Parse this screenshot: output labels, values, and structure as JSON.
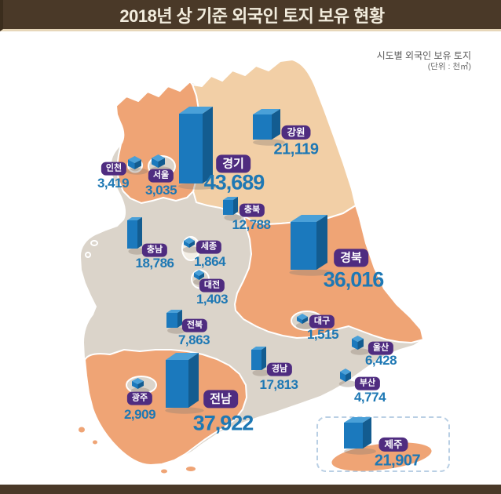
{
  "header": {
    "title": "2018년 상 기준 외국인 토지 보유 현황"
  },
  "subtitle": {
    "line1": "시도별 외국인 보유 토지",
    "line2": "(단위 : 천㎡)"
  },
  "chart_data": {
    "type": "bar",
    "variant": "3d-bar-markers-on-korea-map",
    "title": "2018년 상 기준 외국인 토지 보유 현황",
    "subtitle": "시도별 외국인 보유 토지",
    "unit": "천㎡",
    "categories": [
      "경기",
      "강원",
      "인천",
      "서울",
      "충북",
      "충남",
      "세종",
      "대전",
      "경북",
      "전북",
      "대구",
      "울산",
      "부산",
      "경남",
      "광주",
      "전남",
      "제주"
    ],
    "values": [
      43689,
      21119,
      3419,
      3035,
      12788,
      18786,
      1864,
      1403,
      36016,
      7863,
      1515,
      6428,
      4774,
      17813,
      2909,
      37922,
      21907
    ],
    "regions": [
      {
        "key": "gyeonggi",
        "name": "경기",
        "value": 43689,
        "label": "43,689",
        "emphasis": "large"
      },
      {
        "key": "gangwon",
        "name": "강원",
        "value": 21119,
        "label": "21,119",
        "emphasis": "medium"
      },
      {
        "key": "incheon",
        "name": "인천",
        "value": 3419,
        "label": "3,419",
        "emphasis": "small"
      },
      {
        "key": "seoul",
        "name": "서울",
        "value": 3035,
        "label": "3,035",
        "emphasis": "small"
      },
      {
        "key": "chungbuk",
        "name": "충북",
        "value": 12788,
        "label": "12,788",
        "emphasis": "small"
      },
      {
        "key": "chungnam",
        "name": "충남",
        "value": 18786,
        "label": "18,786",
        "emphasis": "small"
      },
      {
        "key": "sejong",
        "name": "세종",
        "value": 1864,
        "label": "1,864",
        "emphasis": "small"
      },
      {
        "key": "daejeon",
        "name": "대전",
        "value": 1403,
        "label": "1,403",
        "emphasis": "small"
      },
      {
        "key": "gyeongbuk",
        "name": "경북",
        "value": 36016,
        "label": "36,016",
        "emphasis": "large"
      },
      {
        "key": "jeonbuk",
        "name": "전북",
        "value": 7863,
        "label": "7,863",
        "emphasis": "small"
      },
      {
        "key": "daegu",
        "name": "대구",
        "value": 1515,
        "label": "1,515",
        "emphasis": "small"
      },
      {
        "key": "ulsan",
        "name": "울산",
        "value": 6428,
        "label": "6,428",
        "emphasis": "small"
      },
      {
        "key": "busan",
        "name": "부산",
        "value": 4774,
        "label": "4,774",
        "emphasis": "small"
      },
      {
        "key": "gyeongnam",
        "name": "경남",
        "value": 17813,
        "label": "17,813",
        "emphasis": "small"
      },
      {
        "key": "gwangju",
        "name": "광주",
        "value": 2909,
        "label": "2,909",
        "emphasis": "small"
      },
      {
        "key": "jeonnam",
        "name": "전남",
        "value": 37922,
        "label": "37,922",
        "emphasis": "large"
      },
      {
        "key": "jeju",
        "name": "제주",
        "value": 21907,
        "label": "21,907",
        "emphasis": "medium"
      }
    ]
  },
  "colors": {
    "header_bg": "#4A3928",
    "header_text": "#F2ECDD",
    "header_underline": "#E7D7BA",
    "footer_bg": "#4A3928",
    "badge_bg": "#4F2C80",
    "badge_text": "#FFFFFF",
    "value_text": "#1E78B4",
    "bar_front": "#1B79BD",
    "bar_top": "#4AA0D8",
    "bar_side": "#135C90",
    "bar_shadow": "#8F8274",
    "map_orange": "#EFA475",
    "map_peach": "#F2CFA6",
    "map_gray": "#DBD4CA",
    "map_white_region": "#F3EEE5",
    "map_border": "#FFFFFF",
    "jeju_box_border": "#B9CFE4",
    "subtitle_text": "#5A5A5A"
  }
}
